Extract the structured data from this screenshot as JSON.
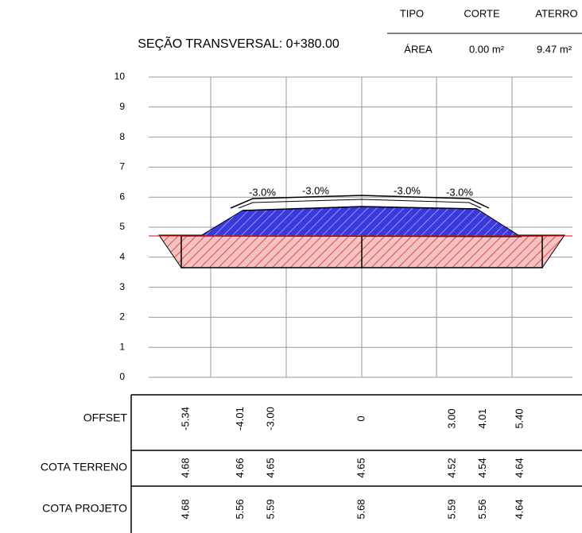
{
  "title": "SEÇÃO TRANSVERSAL: 0+380.00",
  "summary": {
    "headers": [
      "TIPO",
      "CORTE",
      "ATERRO"
    ],
    "row": [
      "ÁREA",
      "0.00 m²",
      "9.47 m²"
    ]
  },
  "ylim": [
    0,
    10
  ],
  "yticks": [
    0,
    1,
    2,
    3,
    4,
    5,
    6,
    7,
    8,
    9,
    10
  ],
  "slopes": [
    "-3.0%",
    "-3.0%",
    "-3.0%",
    "-3.0%"
  ],
  "table": {
    "rows": [
      {
        "label": "OFFSET",
        "values": [
          "-5.34",
          "-4.01",
          "-3.00",
          "0",
          "3.00",
          "4.01",
          "5.40"
        ]
      },
      {
        "label": "COTA TERRENO",
        "values": [
          "4.68",
          "4.66",
          "4.65",
          "4.65",
          "4.52",
          "4.54",
          "4.64"
        ]
      },
      {
        "label": "COTA PROJETO",
        "values": [
          "4.68",
          "5.56",
          "5.59",
          "5.68",
          "5.59",
          "5.56",
          "4.64"
        ]
      }
    ]
  }
}
